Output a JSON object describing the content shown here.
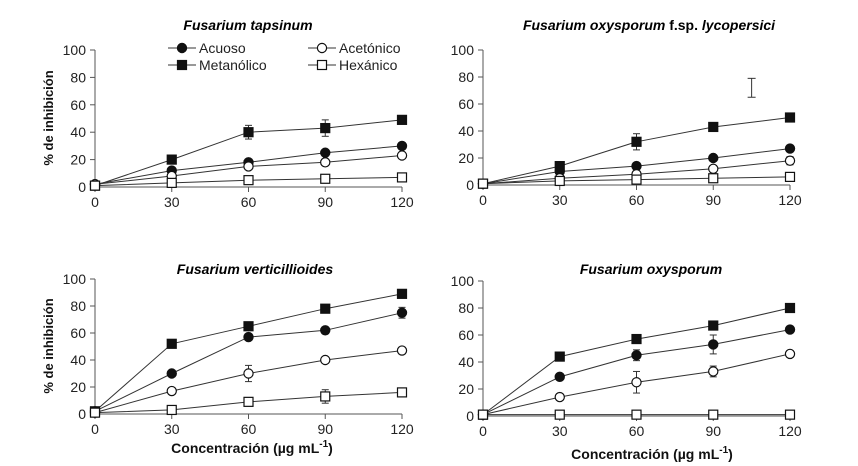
{
  "chart_data": {
    "type": "line",
    "shared": {
      "x": [
        0,
        30,
        60,
        90,
        120
      ],
      "xticks": [
        "0",
        "30",
        "60",
        "90",
        "120"
      ],
      "yticks": [
        "0",
        "20",
        "40",
        "60",
        "80",
        "100"
      ],
      "ylim": [
        0,
        100
      ],
      "xlim": [
        0,
        120
      ],
      "ylabel": "% de inhibición",
      "xlabel_main": "Concentración (µg mL",
      "xlabel_sup": "-1",
      "xlabel_tail": ")"
    },
    "legend": [
      {
        "name": "Acuoso",
        "marker": "filled-circle"
      },
      {
        "name": "Acetónico",
        "marker": "open-circle"
      },
      {
        "name": "Metanólico",
        "marker": "filled-square"
      },
      {
        "name": "Hexánico",
        "marker": "open-square"
      }
    ],
    "panels": [
      {
        "title_italic": "Fusarium tapsinum",
        "title_plain": "",
        "title_italic2": "",
        "series": [
          {
            "name": "Acuoso",
            "marker": "filled-circle",
            "values": [
              2,
              12,
              18,
              25,
              30
            ],
            "errors": [
              0,
              1.5,
              2,
              2,
              1.5
            ]
          },
          {
            "name": "Acetónico",
            "marker": "open-circle",
            "values": [
              2,
              8,
              15,
              18,
              23
            ],
            "errors": [
              0,
              1,
              1.5,
              2,
              1.5
            ]
          },
          {
            "name": "Metanólico",
            "marker": "filled-square",
            "values": [
              1,
              20,
              40,
              43,
              49
            ],
            "errors": [
              0,
              1.5,
              5,
              6,
              1.5
            ]
          },
          {
            "name": "Hexánico",
            "marker": "open-square",
            "values": [
              1,
              3,
              5,
              6,
              7
            ],
            "errors": [
              0,
              1,
              1,
              1,
              1
            ]
          }
        ]
      },
      {
        "title_italic": "Fusarium oxysporum",
        "title_plain": " f.sp. ",
        "title_italic2": "lycopersici",
        "series": [
          {
            "name": "Acuoso",
            "marker": "filled-circle",
            "values": [
              1,
              10,
              14,
              20,
              27
            ],
            "errors": [
              0,
              1,
              1.5,
              1.5,
              1.5
            ]
          },
          {
            "name": "Acetónico",
            "marker": "open-circle",
            "values": [
              1,
              5,
              8,
              12,
              18
            ],
            "errors": [
              0,
              1,
              1.5,
              1.5,
              3
            ]
          },
          {
            "name": "Metanólico",
            "marker": "filled-square",
            "values": [
              1,
              14,
              32,
              43,
              50
            ],
            "errors": [
              0,
              1.5,
              6,
              1.5,
              1.5
            ]
          },
          {
            "name": "Hexánico",
            "marker": "open-square",
            "values": [
              1,
              3,
              4,
              5,
              6
            ],
            "errors": [
              0,
              1,
              1,
              1,
              1
            ]
          }
        ],
        "annotation": {
          "type": "error-bar",
          "x": 105,
          "ylow": 65,
          "yhigh": 79
        }
      },
      {
        "title_italic": "Fusarium verticillioides",
        "title_plain": "",
        "title_italic2": "",
        "series": [
          {
            "name": "Acuoso",
            "marker": "filled-circle",
            "values": [
              2,
              30,
              57,
              62,
              75
            ],
            "errors": [
              0,
              1.5,
              2,
              1.5,
              4
            ]
          },
          {
            "name": "Acetónico",
            "marker": "open-circle",
            "values": [
              1,
              17,
              30,
              40,
              47
            ],
            "errors": [
              0,
              1.5,
              6,
              1.5,
              1.5
            ]
          },
          {
            "name": "Metanólico",
            "marker": "filled-square",
            "values": [
              2,
              52,
              65,
              78,
              89
            ],
            "errors": [
              0,
              1.5,
              1.5,
              1.5,
              1.5
            ]
          },
          {
            "name": "Hexánico",
            "marker": "open-square",
            "values": [
              1,
              3,
              9,
              13,
              16
            ],
            "errors": [
              0,
              1.5,
              2,
              5,
              1.5
            ]
          }
        ]
      },
      {
        "title_italic": "Fusarium oxysporum",
        "title_plain": "",
        "title_italic2": "",
        "series": [
          {
            "name": "Acuoso",
            "marker": "filled-circle",
            "values": [
              1,
              29,
              45,
              53,
              64
            ],
            "errors": [
              0,
              1.5,
              4,
              7,
              1.5
            ]
          },
          {
            "name": "Acetónico",
            "marker": "open-circle",
            "values": [
              1,
              14,
              25,
              33,
              46
            ],
            "errors": [
              0,
              1.5,
              8,
              4,
              1.5
            ]
          },
          {
            "name": "Metanólico",
            "marker": "filled-square",
            "values": [
              1,
              44,
              57,
              67,
              80
            ],
            "errors": [
              0,
              1.5,
              1.5,
              1.5,
              1.5
            ]
          },
          {
            "name": "Hexánico",
            "marker": "open-square",
            "values": [
              1,
              1,
              1,
              1,
              1
            ],
            "errors": [
              0,
              0.5,
              0.5,
              0.5,
              0.5
            ]
          }
        ]
      }
    ]
  }
}
